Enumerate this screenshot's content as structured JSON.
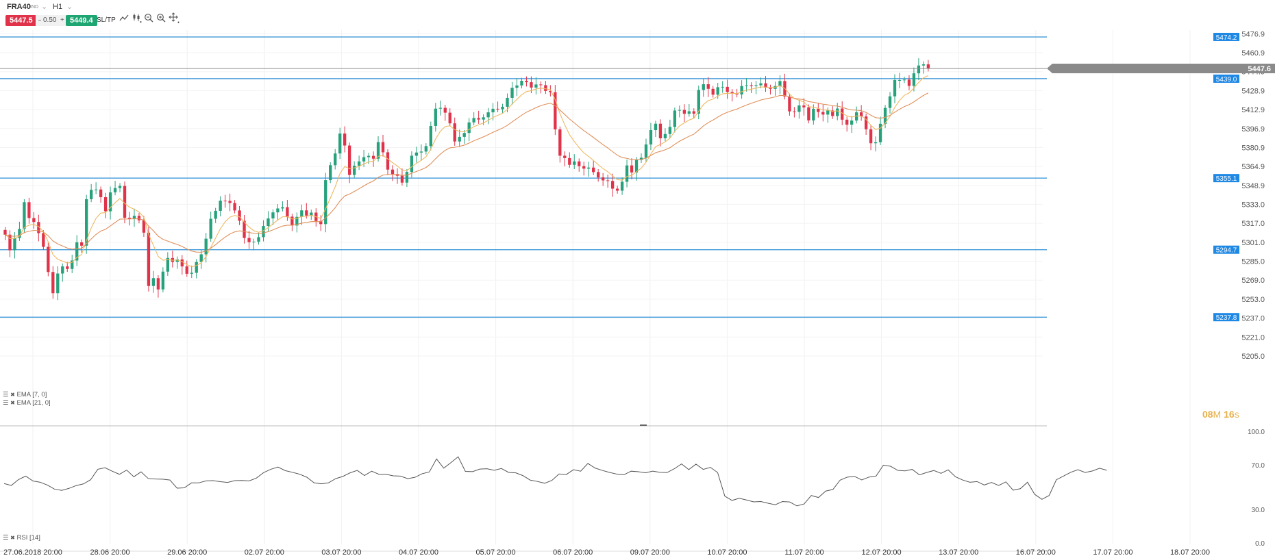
{
  "toolbar": {
    "symbol": "FRA40",
    "symbol_tag": "IND",
    "timeframe": "H1",
    "sell_price": "5447.5",
    "spread": "0.50",
    "buy_price": "5449.4",
    "sltp_label": "SL/TP",
    "icons": [
      "line-chart-icon",
      "candle-settings-icon",
      "zoom-out-icon",
      "zoom-in-icon",
      "crosshair-move-icon"
    ]
  },
  "colors": {
    "up": "#26a17b",
    "down": "#e0334a",
    "ema_fast": "#f0b860",
    "ema_slow": "#e08f5a",
    "level_line": "#2d8fd5",
    "level_label_bg": "#1e88e5",
    "current_price_bg": "#8a8a8a",
    "sell_bg": "#e0334a",
    "buy_bg": "#1ea672",
    "rsi_line": "#555555"
  },
  "legend": {
    "ema_fast": "EMA [7, 0]",
    "ema_slow": "EMA [21, 0]",
    "rsi": "RSI [14]"
  },
  "timer": {
    "minutes": "08",
    "m_unit": "M",
    "seconds": "16",
    "s_unit": "S"
  },
  "chart_data": [
    {
      "type": "candlestick",
      "title": "",
      "ylim": [
        5205.0,
        5484.0
      ],
      "y_ticks": [
        "5476.9",
        "5460.9",
        "5444.9",
        "5428.9",
        "5412.9",
        "5396.9",
        "5380.9",
        "5364.9",
        "5348.9",
        "5333.0",
        "5317.0",
        "5301.0",
        "5285.0",
        "5269.0",
        "5253.0",
        "5237.0",
        "5221.0",
        "5205.0"
      ],
      "x_ticks": [
        "27.06.2018 20:00",
        "28.06 20:00",
        "29.06 20:00",
        "02.07 20:00",
        "03.07 20:00",
        "04.07 20:00",
        "05.07 20:00",
        "06.07 20:00",
        "09.07 20:00",
        "10.07 20:00",
        "11.07 20:00",
        "12.07 20:00",
        "13.07 20:00",
        "16.07 20:00",
        "17.07 20:00",
        "18.07 20:00"
      ],
      "horizontal_levels": [
        "5474.2",
        "5439.0",
        "5355.1",
        "5294.7",
        "5237.8"
      ],
      "current_price": "5447.6",
      "close": [
        5307.4,
        5294.2,
        5304.6,
        5312.2,
        5334.8,
        5321.4,
        5318.1,
        5308.7,
        5297.1,
        5275.9,
        5258.0,
        5274.6,
        5280.6,
        5278.5,
        5285.6,
        5300.9,
        5298.1,
        5337.3,
        5345.2,
        5345.5,
        5339.0,
        5327.1,
        5343.1,
        5346.7,
        5348.5,
        5321.7,
        5320.9,
        5323.3,
        5319.5,
        5309.1,
        5264.1,
        5270.7,
        5261.2,
        5276.2,
        5287.7,
        5284.4,
        5286.5,
        5280.6,
        5274.4,
        5275.2,
        5284.3,
        5290.8,
        5304.0,
        5320.8,
        5327.5,
        5336.1,
        5335.9,
        5334.1,
        5327.8,
        5319.1,
        5304.6,
        5301.1,
        5301.5,
        5305.3,
        5314.7,
        5321.1,
        5326.2,
        5329.5,
        5330.6,
        5322.6,
        5315.1,
        5322.4,
        5327.9,
        5323.5,
        5326.0,
        5318.9,
        5316.3,
        5353.4,
        5366.0,
        5375.9,
        5392.7,
        5382.6,
        5357.8,
        5365.6,
        5369.2,
        5372.8,
        5373.9,
        5371.5,
        5385.5,
        5376.9,
        5362.3,
        5358.5,
        5357.1,
        5351.3,
        5360.3,
        5374.0,
        5376.7,
        5377.5,
        5382.1,
        5399.1,
        5413.7,
        5414.4,
        5410.3,
        5401.3,
        5386.0,
        5389.9,
        5393.2,
        5402.1,
        5405.8,
        5404.5,
        5406.4,
        5410.6,
        5413.6,
        5413.2,
        5415.3,
        5422.8,
        5431.3,
        5433.3,
        5437.2,
        5436.0,
        5431.5,
        5434.1,
        5433.5,
        5428.6,
        5427.6,
        5396.2,
        5374.0,
        5372.0,
        5366.3,
        5369.2,
        5365.2,
        5363.1,
        5364.0,
        5360.2,
        5355.7,
        5353.2,
        5352.7,
        5346.2,
        5344.5,
        5352.0,
        5365.8,
        5359.9,
        5370.4,
        5372.3,
        5383.5,
        5395.6,
        5401.0,
        5388.7,
        5392.3,
        5398.3,
        5412.1,
        5412.6,
        5409.4,
        5411.5,
        5409.5,
        5429.5,
        5434.3,
        5430.4,
        5425.5,
        5431.8,
        5432.1,
        5427.8,
        5426.7,
        5425.7,
        5432.8,
        5433.4,
        5432.7,
        5433.4,
        5435.1,
        5431.4,
        5430.4,
        5432.8,
        5437.0,
        5424.0,
        5411.4,
        5411.0,
        5416.4,
        5414.8,
        5403.8,
        5413.6,
        5410.9,
        5408.7,
        5412.1,
        5407.5,
        5413.8,
        5404.4,
        5400.2,
        5403.7,
        5410.6,
        5407.1,
        5396.3,
        5384.5,
        5385.4,
        5400.9,
        5414.3,
        5424.1,
        5437.8,
        5437.8,
        5438.2,
        5432.9,
        5443.5,
        5450.1,
        5451.1,
        5447.6
      ]
    },
    {
      "type": "line",
      "title": "",
      "ylim": [
        0.0,
        100.0
      ],
      "y_ticks": [
        "100.0",
        "70.0",
        "30.0",
        "0.0"
      ],
      "series": [
        {
          "name": "RSI [14]",
          "values": [
            53.2,
            51.5,
            56.8,
            59.9,
            55.5,
            54.4,
            51.9,
            48.2,
            47.1,
            48.9,
            51.4,
            52.9,
            56.6,
            66.0,
            67.4,
            64.3,
            61.5,
            65.3,
            59.3,
            63.7,
            57.7,
            57.3,
            57.1,
            56.4,
            49.1,
            49.4,
            53.8,
            53.8,
            55.6,
            55.8,
            54.9,
            54.2,
            55.8,
            56.0,
            55.6,
            58.1,
            63.0,
            66.0,
            68.0,
            64.8,
            63.3,
            61.6,
            58.9,
            53.9,
            53.0,
            53.8,
            57.6,
            59.6,
            62.8,
            65.0,
            60.4,
            64.3,
            61.5,
            61.5,
            60.1,
            59.9,
            57.6,
            58.8,
            62.0,
            63.6,
            75.3,
            67.0,
            72.0,
            77.2,
            64.1,
            63.9,
            66.2,
            66.5,
            65.1,
            66.7,
            63.2,
            62.8,
            60.3,
            56.3,
            55.1,
            53.5,
            56.0,
            61.8,
            61.3,
            65.6,
            64.3,
            71.2,
            67.1,
            65.0,
            63.2,
            61.7,
            61.1,
            64.3,
            63.8,
            62.9,
            64.3,
            63.3,
            63.1,
            66.5,
            70.8,
            65.7,
            70.6,
            65.9,
            67.7,
            63.1,
            41.9,
            38.1,
            40.0,
            38.5,
            36.8,
            37.1,
            35.6,
            34.2,
            37.1,
            36.7,
            33.2,
            34.9,
            42.5,
            40.7,
            46.5,
            47.9,
            56.3,
            59.0,
            59.6,
            56.5,
            59.0,
            60.0,
            69.7,
            68.7,
            65.0,
            64.6,
            65.9,
            61.0,
            63.1,
            64.9,
            62.4,
            65.5,
            59.3,
            56.4,
            54.4,
            55.0,
            51.9,
            54.2,
            51.5,
            54.7,
            47.3,
            48.6,
            54.4,
            43.5,
            39.1,
            42.5,
            56.6,
            59.9,
            63.3,
            65.6,
            63.1,
            64.5,
            66.9,
            65.1
          ]
        }
      ]
    }
  ]
}
